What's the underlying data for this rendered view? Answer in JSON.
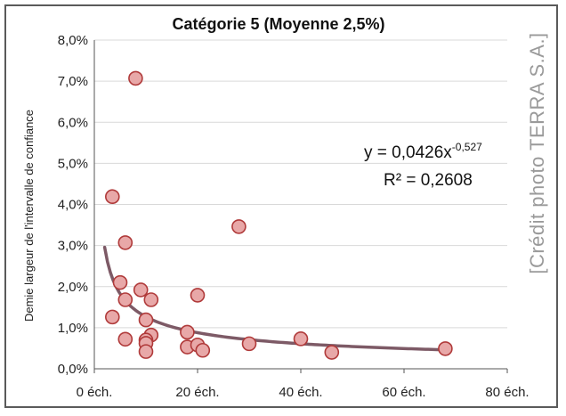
{
  "chart_data": {
    "type": "scatter",
    "title": "Catégorie 5 (Moyenne 2,5%)",
    "xlabel": "",
    "ylabel": "Demie largeur de l'intervalle de confiance",
    "xlim": [
      0,
      80
    ],
    "ylim": [
      0,
      0.08
    ],
    "x_ticks": [
      0,
      20,
      40,
      60,
      80
    ],
    "x_tick_labels": [
      "0 éch.",
      "20 éch.",
      "40 éch.",
      "60 éch.",
      "80 éch."
    ],
    "y_ticks": [
      0,
      0.01,
      0.02,
      0.03,
      0.04,
      0.05,
      0.06,
      0.07,
      0.08
    ],
    "y_tick_labels": [
      "0,0%",
      "1,0%",
      "2,0%",
      "3,0%",
      "4,0%",
      "5,0%",
      "6,0%",
      "7,0%",
      "8,0%"
    ],
    "grid": "horizontal",
    "points": [
      {
        "x": 8,
        "y": 0.0707
      },
      {
        "x": 3.5,
        "y": 0.0419
      },
      {
        "x": 6,
        "y": 0.0307
      },
      {
        "x": 28,
        "y": 0.0346
      },
      {
        "x": 5,
        "y": 0.021
      },
      {
        "x": 9,
        "y": 0.0192
      },
      {
        "x": 6,
        "y": 0.0168
      },
      {
        "x": 11,
        "y": 0.0168
      },
      {
        "x": 20,
        "y": 0.0179
      },
      {
        "x": 3.5,
        "y": 0.0126
      },
      {
        "x": 10,
        "y": 0.0119
      },
      {
        "x": 6,
        "y": 0.0072
      },
      {
        "x": 11,
        "y": 0.0082
      },
      {
        "x": 10,
        "y": 0.007
      },
      {
        "x": 10,
        "y": 0.0062
      },
      {
        "x": 10,
        "y": 0.0042
      },
      {
        "x": 18,
        "y": 0.0089
      },
      {
        "x": 18,
        "y": 0.0053
      },
      {
        "x": 20,
        "y": 0.0058
      },
      {
        "x": 21,
        "y": 0.0045
      },
      {
        "x": 30,
        "y": 0.0061
      },
      {
        "x": 40,
        "y": 0.0073
      },
      {
        "x": 46,
        "y": 0.004
      },
      {
        "x": 68,
        "y": 0.0049
      }
    ],
    "trendline": {
      "type": "power",
      "a": 0.0426,
      "b": -0.527,
      "x_range": [
        2,
        68
      ],
      "equation_base": "y = 0,0426x",
      "equation_exponent": "-0,527",
      "r_squared_label": "R² = 0,2608"
    },
    "colors": {
      "marker_fill": "#e8a8a8",
      "marker_stroke": "#b03a3a",
      "trendline": "#7d5a66",
      "grid": "#d9d9d9",
      "axis": "#555555"
    }
  },
  "credit": "[Crédit photo TERRA S.A.]"
}
